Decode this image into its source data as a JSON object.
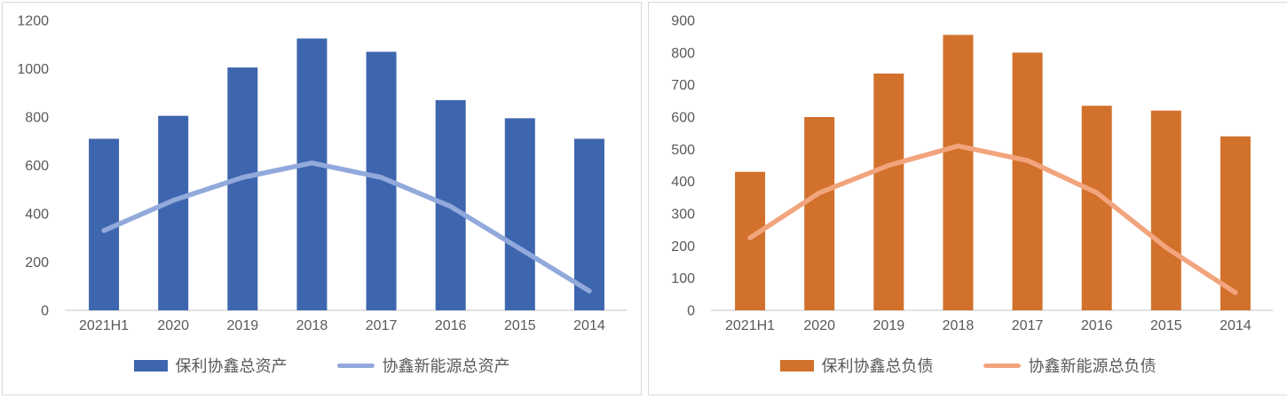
{
  "style": {
    "panel_border_color": "#d9d9d9",
    "axis_line_color": "#d9d9d9",
    "tick_text_color": "#595959",
    "legend_text_color": "#595959"
  },
  "chart_data": [
    {
      "type": "bar+line",
      "title": "",
      "xlabel": "",
      "ylabel": "",
      "grid": false,
      "legend_position": "bottom",
      "categories": [
        "2021H1",
        "2020",
        "2019",
        "2018",
        "2017",
        "2016",
        "2015",
        "2014"
      ],
      "ylim": [
        0,
        1200
      ],
      "yticks": [
        0,
        200,
        400,
        600,
        800,
        1000,
        1200
      ],
      "series": [
        {
          "name": "保利协鑫总资产",
          "type": "bar",
          "color": "#3e66ae",
          "values": [
            710,
            805,
            1005,
            1125,
            1070,
            870,
            795,
            710
          ]
        },
        {
          "name": "协鑫新能源总资产",
          "type": "line",
          "color": "#92a9dc",
          "values": [
            330,
            455,
            550,
            610,
            550,
            430,
            255,
            80
          ]
        }
      ]
    },
    {
      "type": "bar+line",
      "title": "",
      "xlabel": "",
      "ylabel": "",
      "grid": false,
      "legend_position": "bottom",
      "categories": [
        "2021H1",
        "2020",
        "2019",
        "2018",
        "2017",
        "2016",
        "2015",
        "2014"
      ],
      "ylim": [
        0,
        900
      ],
      "yticks": [
        0,
        100,
        200,
        300,
        400,
        500,
        600,
        700,
        800,
        900
      ],
      "series": [
        {
          "name": "保利协鑫总负债",
          "type": "bar",
          "color": "#d2712c",
          "values": [
            430,
            600,
            735,
            855,
            800,
            635,
            620,
            540
          ]
        },
        {
          "name": "协鑫新能源总负债",
          "type": "line",
          "color": "#f2a47d",
          "values": [
            225,
            365,
            450,
            510,
            465,
            365,
            195,
            55
          ]
        }
      ]
    }
  ]
}
